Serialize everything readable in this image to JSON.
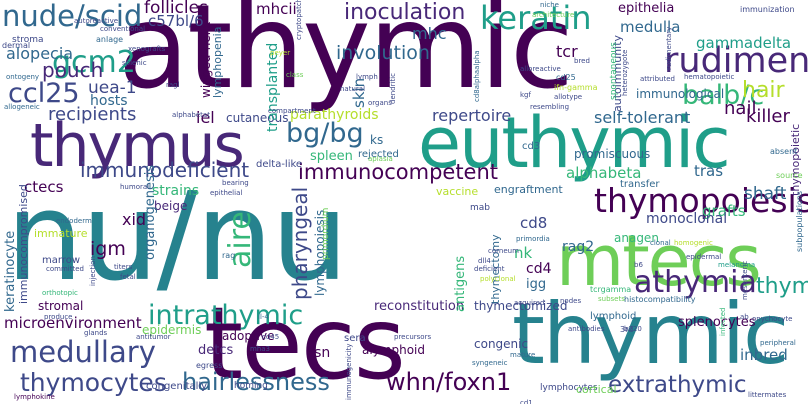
{
  "background": "#ffffff",
  "palette": [
    "#440154",
    "#482878",
    "#3e4989",
    "#31688e",
    "#26828e",
    "#1f9e89",
    "#35b779",
    "#6ece58",
    "#b5de2b",
    "#fde725"
  ],
  "words": [
    {
      "text": "athymic",
      "color": "#440154"
    },
    {
      "text": "nu/nu",
      "color": "#26828e"
    },
    {
      "text": "tecs",
      "color": "#440154"
    },
    {
      "text": "thymic",
      "color": "#26828e"
    },
    {
      "text": "euthymic",
      "color": "#1f9e89"
    },
    {
      "text": "thymus",
      "color": "#482878"
    },
    {
      "text": "mtecs",
      "color": "#6ece58"
    },
    {
      "text": "nude/scid",
      "color": "#31688e"
    },
    {
      "text": "thymopoiesis",
      "color": "#440154"
    },
    {
      "text": "keratin",
      "color": "#1f9e89"
    },
    {
      "text": "rudiment",
      "color": "#482878"
    },
    {
      "text": "medullary",
      "color": "#3e4989"
    },
    {
      "text": "intrathymic",
      "color": "#1f9e89"
    },
    {
      "text": "athymia",
      "color": "#482878"
    },
    {
      "text": "thymocytes",
      "color": "#3e4989"
    },
    {
      "text": "hairlessness",
      "color": "#31688e"
    },
    {
      "text": "whn/foxn1",
      "color": "#440154"
    },
    {
      "text": "extrathymic",
      "color": "#3e4989"
    },
    {
      "text": "gcm2",
      "color": "#1f9e89"
    },
    {
      "text": "ccl25",
      "color": "#3e4989"
    },
    {
      "text": "balb/c",
      "color": "#35b779"
    },
    {
      "text": "bg/bg",
      "color": "#31688e"
    },
    {
      "text": "immunocompetent",
      "color": "#440154"
    },
    {
      "text": "immunodeficient",
      "color": "#3e4989"
    },
    {
      "text": "aire",
      "color": "#35b779"
    },
    {
      "text": "pharyngeal",
      "color": "#3e4989"
    },
    {
      "text": "thymi",
      "color": "#1f9e89"
    },
    {
      "text": "pouch",
      "color": "#482878"
    },
    {
      "text": "alopecia",
      "color": "#31688e"
    },
    {
      "text": "follicles",
      "color": "#440154"
    },
    {
      "text": "c57bl/6",
      "color": "#3e4989"
    },
    {
      "text": "mhcii",
      "color": "#440154"
    },
    {
      "text": "inoculation",
      "color": "#482878"
    },
    {
      "text": "involution",
      "color": "#31688e"
    },
    {
      "text": "hair",
      "color": "#b5de2b"
    },
    {
      "text": "nail",
      "color": "#440154"
    },
    {
      "text": "killer",
      "color": "#440154"
    },
    {
      "text": "recipients",
      "color": "#3e4989"
    },
    {
      "text": "iel",
      "color": "#440154"
    },
    {
      "text": "uea-1",
      "color": "#3e4989"
    },
    {
      "text": "hosts",
      "color": "#31688e"
    },
    {
      "text": "skin",
      "color": "#31688e"
    },
    {
      "text": "mhc",
      "color": "#31688e"
    },
    {
      "text": "tcr",
      "color": "#440154"
    },
    {
      "text": "gammadelta",
      "color": "#1f9e89"
    },
    {
      "text": "medulla",
      "color": "#31688e"
    },
    {
      "text": "epithelia",
      "color": "#440154"
    },
    {
      "text": "immunization",
      "color": "#3e4989"
    },
    {
      "text": "immunological",
      "color": "#31688e"
    },
    {
      "text": "autoimmunity",
      "color": "#3e4989"
    },
    {
      "text": "self-tolerant",
      "color": "#31688e"
    },
    {
      "text": "repertoire",
      "color": "#3e4989"
    },
    {
      "text": "parathyroids",
      "color": "#b5de2b"
    },
    {
      "text": "spleen",
      "color": "#35b779"
    },
    {
      "text": "ks",
      "color": "#31688e"
    },
    {
      "text": "cutaneous",
      "color": "#3e4989"
    },
    {
      "text": "winged-helix",
      "color": "#440154"
    },
    {
      "text": "lymphopenia",
      "color": "#31688e"
    },
    {
      "text": "transplanted",
      "color": "#1f9e89"
    },
    {
      "text": "ctecs",
      "color": "#440154"
    },
    {
      "text": "strains",
      "color": "#35b779"
    },
    {
      "text": "beige",
      "color": "#482878"
    },
    {
      "text": "xid",
      "color": "#440154"
    },
    {
      "text": "igm",
      "color": "#440154"
    },
    {
      "text": "organogenesis",
      "color": "#31688e"
    },
    {
      "text": "alphabeta",
      "color": "#35b779"
    },
    {
      "text": "tras",
      "color": "#31688e"
    },
    {
      "text": "shaft",
      "color": "#31688e"
    },
    {
      "text": "grafts",
      "color": "#35b779"
    },
    {
      "text": "promiscuous",
      "color": "#31688e"
    },
    {
      "text": "cd8",
      "color": "#3e4989"
    },
    {
      "text": "rag2",
      "color": "#31688e"
    },
    {
      "text": "nk",
      "color": "#35b779"
    },
    {
      "text": "cd4",
      "color": "#440154"
    },
    {
      "text": "igg",
      "color": "#31688e"
    },
    {
      "text": "monoclonal",
      "color": "#3e4989"
    },
    {
      "text": "anagen",
      "color": "#35b779"
    },
    {
      "text": "lymphopoiesis",
      "color": "#31688e"
    },
    {
      "text": "thymectomy",
      "color": "#31688e"
    },
    {
      "text": "thymectomized",
      "color": "#3e4989"
    },
    {
      "text": "reconstitution",
      "color": "#482878"
    },
    {
      "text": "adoptive",
      "color": "#440154"
    },
    {
      "text": "ksn",
      "color": "#440154"
    },
    {
      "text": "alymphoid",
      "color": "#440154"
    },
    {
      "text": "congenic",
      "color": "#3e4989"
    },
    {
      "text": "antigens",
      "color": "#35b779"
    },
    {
      "text": "microenvironment",
      "color": "#440154"
    },
    {
      "text": "keratinocyte",
      "color": "#31688e"
    },
    {
      "text": "immunocompromised",
      "color": "#3e4989"
    },
    {
      "text": "epidermis",
      "color": "#6ece58"
    },
    {
      "text": "detcs",
      "color": "#482878"
    },
    {
      "text": "splenocytes",
      "color": "#440154"
    },
    {
      "text": "inbred",
      "color": "#31688e"
    },
    {
      "text": "thymopoietic",
      "color": "#482878"
    },
    {
      "text": "cd3",
      "color": "#31688e"
    },
    {
      "text": "stromal",
      "color": "#440154"
    },
    {
      "text": "marrow",
      "color": "#3e4989"
    },
    {
      "text": "immature",
      "color": "#b5de2b"
    },
    {
      "text": "sera",
      "color": "#3e4989"
    },
    {
      "text": "vaccine",
      "color": "#b5de2b"
    },
    {
      "text": "rejected",
      "color": "#31688e"
    },
    {
      "text": "engraftment",
      "color": "#31688e"
    },
    {
      "text": "delta-like",
      "color": "#3e4989"
    },
    {
      "text": "transfer",
      "color": "#31688e"
    },
    {
      "text": "congenitally",
      "color": "#3e4989"
    },
    {
      "text": "homing",
      "color": "#3e4989"
    },
    {
      "text": "lymphocytes",
      "color": "#3e4989"
    },
    {
      "text": "cortical",
      "color": "#6ece58"
    },
    {
      "text": "stroma",
      "color": "#3e4989"
    },
    {
      "text": "anlage",
      "color": "#31688e"
    },
    {
      "text": "dermal",
      "color": "#3e4989"
    },
    {
      "text": "xenografts",
      "color": "#3e4989"
    },
    {
      "text": "conventional",
      "color": "#3e4989"
    },
    {
      "text": "ontogeny",
      "color": "#31688e"
    },
    {
      "text": "allogeneic",
      "color": "#31688e"
    },
    {
      "text": "mab",
      "color": "#3e4989"
    },
    {
      "text": "rag",
      "color": "#31688e"
    },
    {
      "text": "endoderm",
      "color": "#31688e"
    },
    {
      "text": "primordium",
      "color": "#6ece58"
    },
    {
      "text": "histocompatibility",
      "color": "#31688e"
    },
    {
      "text": "lymphoid",
      "color": "#31688e"
    },
    {
      "text": "3rd",
      "color": "#3e4989"
    },
    {
      "text": "b6",
      "color": "#3e4989"
    },
    {
      "text": "absent",
      "color": "#31688e"
    },
    {
      "text": "subpopulations",
      "color": "#31688e"
    },
    {
      "text": "source",
      "color": "#6ece58"
    },
    {
      "text": "melanoma",
      "color": "#1f9e89"
    },
    {
      "text": "peripheral",
      "color": "#31688e"
    },
    {
      "text": "onychocyte",
      "color": "#3e4989"
    },
    {
      "text": "littermates",
      "color": "#3e4989"
    },
    {
      "text": "egress",
      "color": "#3e4989"
    },
    {
      "text": "antibodies",
      "color": "#3e4989"
    },
    {
      "text": "syngeneic",
      "color": "#31688e"
    },
    {
      "text": "nodes",
      "color": "#3e4989"
    },
    {
      "text": "acquired",
      "color": "#3e4989"
    },
    {
      "text": "subsets",
      "color": "#6ece58"
    },
    {
      "text": "tcrgamma",
      "color": "#35b779"
    },
    {
      "text": "epidermal",
      "color": "#3e4989"
    },
    {
      "text": "primordia",
      "color": "#31688e"
    },
    {
      "text": "clonal",
      "color": "#31688e"
    },
    {
      "text": "homogenic",
      "color": "#b5de2b"
    },
    {
      "text": "deficient",
      "color": "#3e4989"
    },
    {
      "text": "dll4",
      "color": "#3e4989"
    },
    {
      "text": "corneum",
      "color": "#3e4989"
    },
    {
      "text": "polyclonal",
      "color": "#b5de2b"
    },
    {
      "text": "il-4",
      "color": "#31688e"
    },
    {
      "text": "titers",
      "color": "#3e4989"
    },
    {
      "text": "fetal",
      "color": "#3e4989"
    },
    {
      "text": "injection",
      "color": "#3e4989"
    },
    {
      "text": "produce",
      "color": "#3e4989"
    },
    {
      "text": "orthotopic",
      "color": "#35b779"
    },
    {
      "text": "committed",
      "color": "#3e4989"
    },
    {
      "text": "glands",
      "color": "#3e4989"
    },
    {
      "text": "antitumor",
      "color": "#3e4989"
    },
    {
      "text": "lymphokine",
      "color": "#440154"
    },
    {
      "text": "epithelial",
      "color": "#3e4989"
    },
    {
      "text": "bearing",
      "color": "#3e4989"
    },
    {
      "text": "aplasia",
      "color": "#6ece58"
    },
    {
      "text": "cd45",
      "color": "#3e4989"
    },
    {
      "text": "precursors",
      "color": "#3e4989"
    },
    {
      "text": "mature",
      "color": "#31688e"
    },
    {
      "text": "cd25",
      "color": "#31688e"
    },
    {
      "text": "ifn-gamma",
      "color": "#b5de2b"
    },
    {
      "text": "kgf",
      "color": "#3e4989"
    },
    {
      "text": "bred",
      "color": "#3e4989"
    },
    {
      "text": "niche",
      "color": "#31688e"
    },
    {
      "text": "architecture",
      "color": "#6ece58"
    },
    {
      "text": "attributed",
      "color": "#3e4989"
    },
    {
      "text": "humoral",
      "color": "#3e4989"
    },
    {
      "text": "lymph",
      "color": "#3e4989"
    },
    {
      "text": "natural",
      "color": "#3e4989"
    },
    {
      "text": "class",
      "color": "#6ece58"
    },
    {
      "text": "peyer",
      "color": "#b5de2b"
    },
    {
      "text": "splenic",
      "color": "#3e4989"
    },
    {
      "text": "ragl",
      "color": "#3e4989"
    },
    {
      "text": "alphabetat",
      "color": "#3e4989"
    },
    {
      "text": "dendritic",
      "color": "#3e4989"
    },
    {
      "text": "organs",
      "color": "#3e4989"
    },
    {
      "text": "cd8alphaalpha",
      "color": "#31688e"
    },
    {
      "text": "resembling",
      "color": "#3e4989"
    },
    {
      "text": "alloreactive",
      "color": "#3e4989"
    },
    {
      "text": "cryptopatch",
      "color": "#3e4989"
    },
    {
      "text": "spontaneous",
      "color": "#35b779"
    },
    {
      "text": "heterozygote",
      "color": "#3e4989"
    },
    {
      "text": "allotype",
      "color": "#3e4989"
    },
    {
      "text": "hematopoietic",
      "color": "#3e4989"
    },
    {
      "text": "autoreactive",
      "color": "#3e4989"
    },
    {
      "text": "rudimentary",
      "color": "#3e4989"
    },
    {
      "text": "infected",
      "color": "#35b779"
    },
    {
      "text": "mesenteric",
      "color": "#3e4989"
    },
    {
      "text": "immunogenicity",
      "color": "#3e4989"
    },
    {
      "text": "compartment",
      "color": "#3e4989"
    },
    {
      "text": "ab",
      "color": "#3e4989"
    },
    {
      "text": "cd1",
      "color": "#3e4989"
    },
    {
      "text": "b220",
      "color": "#3e4989"
    },
    {
      "text": "mha3",
      "color": "#3e4989"
    }
  ]
}
